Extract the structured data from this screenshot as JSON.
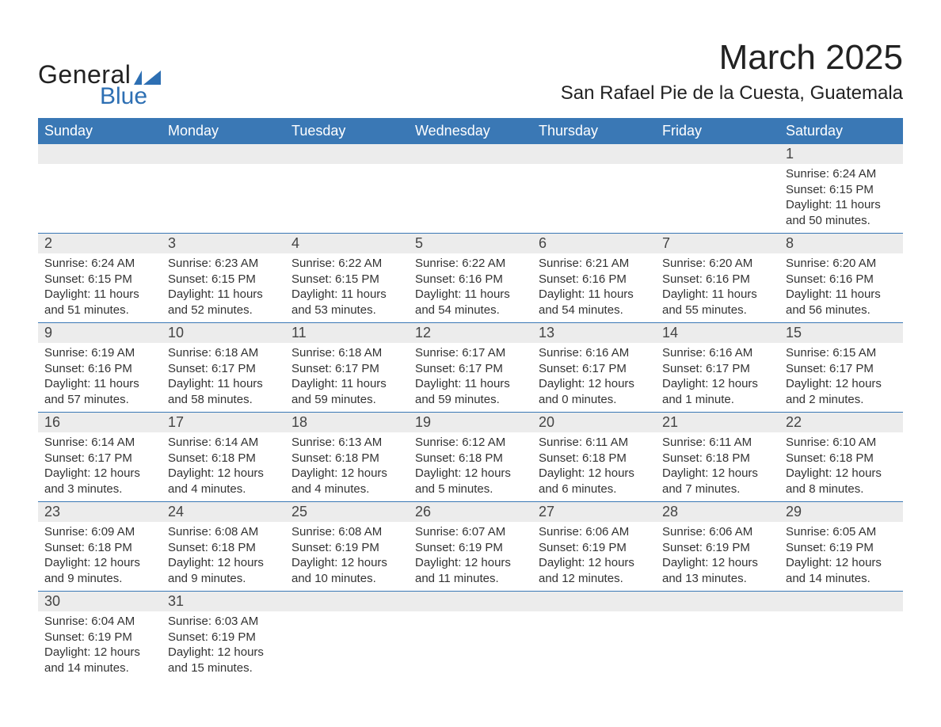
{
  "logo": {
    "word1": "General",
    "word2": "Blue",
    "shape_color": "#2d6fb3"
  },
  "title": "March 2025",
  "location": "San Rafael Pie de la Cuesta, Guatemala",
  "colors": {
    "header_bg": "#3a78b5",
    "header_text": "#ffffff",
    "daynum_bg": "#ececec",
    "row_border": "#3a78b5",
    "text": "#333333"
  },
  "day_headers": [
    "Sunday",
    "Monday",
    "Tuesday",
    "Wednesday",
    "Thursday",
    "Friday",
    "Saturday"
  ],
  "weeks": [
    {
      "nums": [
        "",
        "",
        "",
        "",
        "",
        "",
        "1"
      ],
      "details": [
        "",
        "",
        "",
        "",
        "",
        "",
        "Sunrise: 6:24 AM\nSunset: 6:15 PM\nDaylight: 11 hours and 50 minutes."
      ]
    },
    {
      "nums": [
        "2",
        "3",
        "4",
        "5",
        "6",
        "7",
        "8"
      ],
      "details": [
        "Sunrise: 6:24 AM\nSunset: 6:15 PM\nDaylight: 11 hours and 51 minutes.",
        "Sunrise: 6:23 AM\nSunset: 6:15 PM\nDaylight: 11 hours and 52 minutes.",
        "Sunrise: 6:22 AM\nSunset: 6:15 PM\nDaylight: 11 hours and 53 minutes.",
        "Sunrise: 6:22 AM\nSunset: 6:16 PM\nDaylight: 11 hours and 54 minutes.",
        "Sunrise: 6:21 AM\nSunset: 6:16 PM\nDaylight: 11 hours and 54 minutes.",
        "Sunrise: 6:20 AM\nSunset: 6:16 PM\nDaylight: 11 hours and 55 minutes.",
        "Sunrise: 6:20 AM\nSunset: 6:16 PM\nDaylight: 11 hours and 56 minutes."
      ]
    },
    {
      "nums": [
        "9",
        "10",
        "11",
        "12",
        "13",
        "14",
        "15"
      ],
      "details": [
        "Sunrise: 6:19 AM\nSunset: 6:16 PM\nDaylight: 11 hours and 57 minutes.",
        "Sunrise: 6:18 AM\nSunset: 6:17 PM\nDaylight: 11 hours and 58 minutes.",
        "Sunrise: 6:18 AM\nSunset: 6:17 PM\nDaylight: 11 hours and 59 minutes.",
        "Sunrise: 6:17 AM\nSunset: 6:17 PM\nDaylight: 11 hours and 59 minutes.",
        "Sunrise: 6:16 AM\nSunset: 6:17 PM\nDaylight: 12 hours and 0 minutes.",
        "Sunrise: 6:16 AM\nSunset: 6:17 PM\nDaylight: 12 hours and 1 minute.",
        "Sunrise: 6:15 AM\nSunset: 6:17 PM\nDaylight: 12 hours and 2 minutes."
      ]
    },
    {
      "nums": [
        "16",
        "17",
        "18",
        "19",
        "20",
        "21",
        "22"
      ],
      "details": [
        "Sunrise: 6:14 AM\nSunset: 6:17 PM\nDaylight: 12 hours and 3 minutes.",
        "Sunrise: 6:14 AM\nSunset: 6:18 PM\nDaylight: 12 hours and 4 minutes.",
        "Sunrise: 6:13 AM\nSunset: 6:18 PM\nDaylight: 12 hours and 4 minutes.",
        "Sunrise: 6:12 AM\nSunset: 6:18 PM\nDaylight: 12 hours and 5 minutes.",
        "Sunrise: 6:11 AM\nSunset: 6:18 PM\nDaylight: 12 hours and 6 minutes.",
        "Sunrise: 6:11 AM\nSunset: 6:18 PM\nDaylight: 12 hours and 7 minutes.",
        "Sunrise: 6:10 AM\nSunset: 6:18 PM\nDaylight: 12 hours and 8 minutes."
      ]
    },
    {
      "nums": [
        "23",
        "24",
        "25",
        "26",
        "27",
        "28",
        "29"
      ],
      "details": [
        "Sunrise: 6:09 AM\nSunset: 6:18 PM\nDaylight: 12 hours and 9 minutes.",
        "Sunrise: 6:08 AM\nSunset: 6:18 PM\nDaylight: 12 hours and 9 minutes.",
        "Sunrise: 6:08 AM\nSunset: 6:19 PM\nDaylight: 12 hours and 10 minutes.",
        "Sunrise: 6:07 AM\nSunset: 6:19 PM\nDaylight: 12 hours and 11 minutes.",
        "Sunrise: 6:06 AM\nSunset: 6:19 PM\nDaylight: 12 hours and 12 minutes.",
        "Sunrise: 6:06 AM\nSunset: 6:19 PM\nDaylight: 12 hours and 13 minutes.",
        "Sunrise: 6:05 AM\nSunset: 6:19 PM\nDaylight: 12 hours and 14 minutes."
      ]
    },
    {
      "nums": [
        "30",
        "31",
        "",
        "",
        "",
        "",
        ""
      ],
      "details": [
        "Sunrise: 6:04 AM\nSunset: 6:19 PM\nDaylight: 12 hours and 14 minutes.",
        "Sunrise: 6:03 AM\nSunset: 6:19 PM\nDaylight: 12 hours and 15 minutes.",
        "",
        "",
        "",
        "",
        ""
      ]
    }
  ]
}
